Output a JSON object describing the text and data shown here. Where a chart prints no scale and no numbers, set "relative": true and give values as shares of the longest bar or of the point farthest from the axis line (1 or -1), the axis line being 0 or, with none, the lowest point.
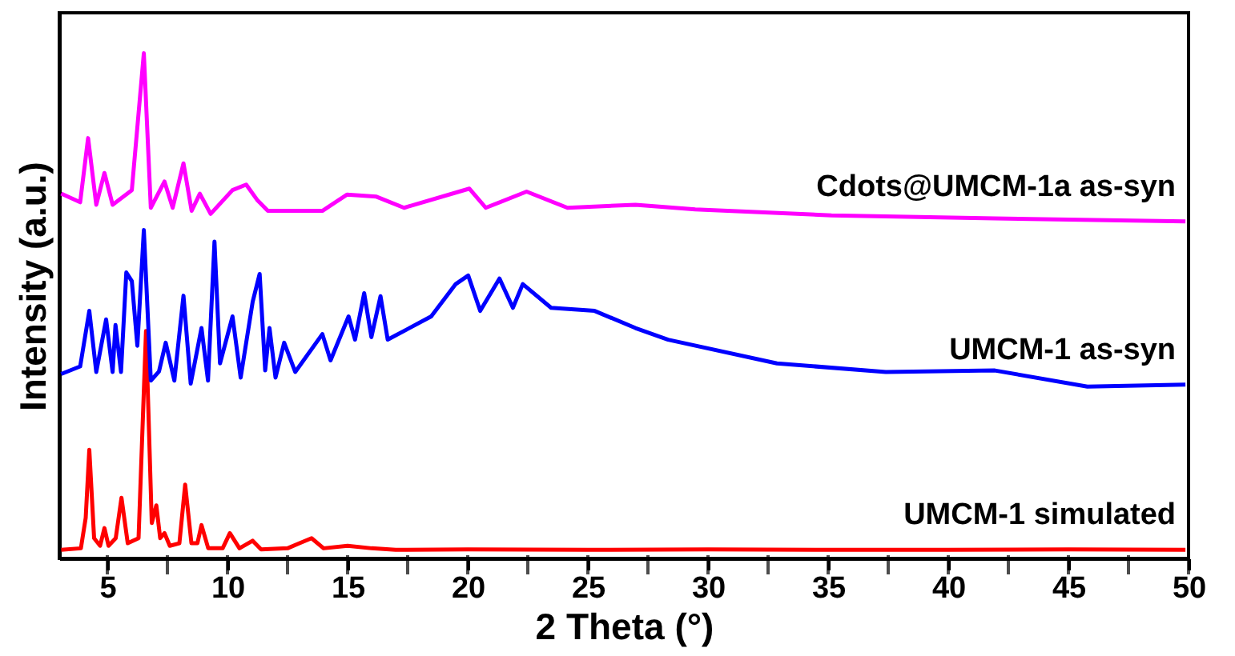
{
  "chart_data": {
    "type": "line",
    "relative": true,
    "xlabel": "2 Theta (°)",
    "ylabel": "Intensity (a.u.)",
    "xlim": [
      3,
      50
    ],
    "xticks": [
      5,
      {
        "value": 7.5,
        "label": null
      },
      10,
      {
        "value": 12.5,
        "label": null
      },
      15,
      {
        "value": 17.5,
        "label": null
      },
      20,
      {
        "value": 22.5,
        "label": null
      },
      25,
      {
        "value": 27.5,
        "label": null
      },
      30,
      {
        "value": 32.5,
        "label": null
      },
      35,
      {
        "value": 37.5,
        "label": null
      },
      40,
      {
        "value": 42.5,
        "label": null
      },
      45,
      {
        "value": 47.5,
        "label": null
      },
      50
    ],
    "grid": false,
    "line_style": "solid",
    "marker": "none",
    "series": [
      {
        "name": "UMCM-1 simulated",
        "color": "#ff0000",
        "x": [
          3.08,
          3.9,
          4.1,
          4.25,
          4.45,
          4.7,
          4.88,
          5.05,
          5.35,
          5.59,
          5.85,
          6.3,
          6.61,
          6.85,
          7.04,
          7.2,
          7.38,
          7.6,
          8.0,
          8.24,
          8.5,
          8.75,
          8.92,
          9.2,
          9.8,
          10.1,
          10.5,
          11.05,
          11.4,
          12.5,
          13.0,
          13.5,
          14.0,
          15.0,
          16.0,
          17.0,
          20.0,
          25.0,
          30.0,
          35.0,
          40.0,
          45.0,
          49.87
        ],
        "values": [
          0.017,
          0.02,
          0.08,
          0.215,
          0.04,
          0.025,
          0.06,
          0.025,
          0.04,
          0.12,
          0.03,
          0.04,
          0.45,
          0.07,
          0.105,
          0.04,
          0.05,
          0.025,
          0.03,
          0.146,
          0.03,
          0.03,
          0.066,
          0.02,
          0.02,
          0.05,
          0.02,
          0.035,
          0.018,
          0.02,
          0.03,
          0.04,
          0.02,
          0.025,
          0.02,
          0.017,
          0.018,
          0.017,
          0.018,
          0.017,
          0.017,
          0.018,
          0.017
        ]
      },
      {
        "name": "UMCM-1 as-syn",
        "color": "#0000ff",
        "x": [
          3.08,
          3.87,
          4.25,
          4.54,
          4.95,
          5.22,
          5.34,
          5.57,
          5.79,
          6.02,
          6.25,
          6.52,
          6.81,
          7.15,
          7.43,
          7.79,
          8.17,
          8.47,
          8.92,
          9.19,
          9.46,
          9.69,
          10.21,
          10.55,
          11.05,
          11.34,
          11.57,
          11.75,
          12.0,
          12.36,
          12.82,
          13.95,
          14.29,
          15.04,
          15.31,
          15.69,
          15.99,
          16.37,
          16.67,
          18.48,
          19.5,
          20.02,
          20.52,
          21.32,
          21.88,
          22.29,
          23.47,
          25.28,
          26.98,
          28.34,
          32.87,
          37.4,
          41.94,
          45.79,
          49.87
        ],
        "values": [
          0.365,
          0.38,
          0.49,
          0.369,
          0.473,
          0.369,
          0.462,
          0.369,
          0.566,
          0.549,
          0.421,
          0.65,
          0.352,
          0.37,
          0.427,
          0.352,
          0.52,
          0.346,
          0.456,
          0.352,
          0.627,
          0.386,
          0.479,
          0.358,
          0.508,
          0.563,
          0.372,
          0.456,
          0.358,
          0.427,
          0.369,
          0.444,
          0.392,
          0.479,
          0.433,
          0.525,
          0.438,
          0.519,
          0.433,
          0.479,
          0.543,
          0.56,
          0.49,
          0.554,
          0.496,
          0.543,
          0.496,
          0.49,
          0.456,
          0.433,
          0.386,
          0.369,
          0.372,
          0.34,
          0.344
        ]
      },
      {
        "name": "Cdots@UMCM-1a as-syn",
        "color": "#ff00ff",
        "x": [
          3.08,
          3.87,
          4.2,
          4.54,
          4.88,
          5.22,
          6.02,
          6.52,
          6.81,
          7.38,
          7.72,
          8.17,
          8.51,
          8.85,
          9.3,
          10.21,
          10.78,
          11.23,
          11.68,
          13.95,
          14.97,
          16.2,
          17.35,
          20.07,
          20.75,
          22.45,
          24.15,
          26.98,
          29.47,
          35.14,
          41.94,
          49.87
        ],
        "values": [
          0.722,
          0.705,
          0.832,
          0.7,
          0.763,
          0.7,
          0.729,
          1.0,
          0.694,
          0.746,
          0.694,
          0.782,
          0.688,
          0.722,
          0.682,
          0.729,
          0.74,
          0.71,
          0.688,
          0.688,
          0.72,
          0.716,
          0.694,
          0.732,
          0.694,
          0.726,
          0.694,
          0.7,
          0.691,
          0.679,
          0.673,
          0.667
        ]
      }
    ]
  }
}
